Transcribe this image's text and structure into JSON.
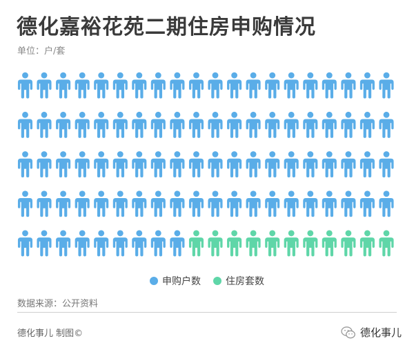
{
  "header": {
    "title": "德化嘉裕花苑二期住房申购情况",
    "subtitle": "单位：户/套"
  },
  "chart_data": {
    "type": "pictogram",
    "series": [
      {
        "name": "申购户数",
        "value": 89,
        "color": "#5aade8"
      },
      {
        "name": "住房套数",
        "value": 11,
        "color": "#5fd6a8"
      }
    ],
    "rows": 5,
    "columns": 20,
    "legend": "bottom-center"
  },
  "footer": {
    "source": "数据来源：公开资料",
    "credit": "德化事儿 制图©",
    "brand": "德化事儿"
  }
}
